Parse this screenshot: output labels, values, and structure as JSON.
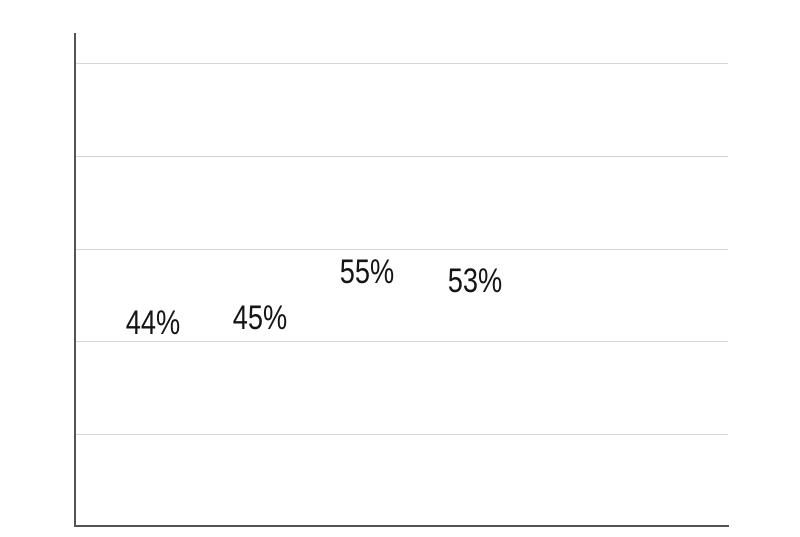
{
  "chart_data": {
    "type": "line",
    "mark_style": "value-labels-only",
    "categories": [
      "",
      "",
      "",
      ""
    ],
    "series": [
      {
        "name": "",
        "values": [
          44,
          45,
          55,
          53
        ]
      }
    ],
    "point_labels": [
      "44%",
      "45%",
      "55%",
      "53%"
    ],
    "title": "",
    "xlabel": "",
    "ylabel": "",
    "ylim": [
      0,
      100
    ],
    "yticks": [
      0,
      20,
      40,
      60,
      80,
      100
    ],
    "ytick_labels_visible": false,
    "xtick_labels_visible": false,
    "grid": "horizontal",
    "legend": false
  },
  "colors": {
    "background": "#ffffff",
    "axis": "#545454",
    "gridline": "#d6d6d6",
    "label_text": "#151515"
  }
}
